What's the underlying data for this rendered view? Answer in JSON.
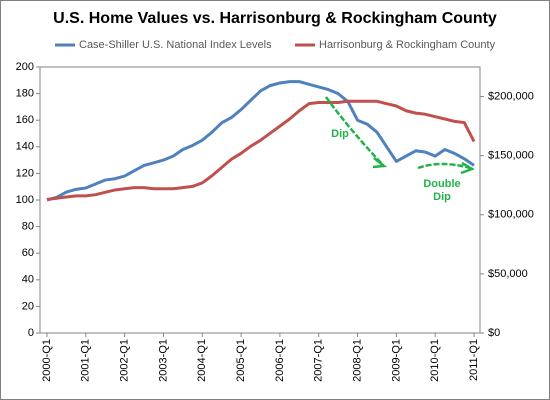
{
  "chart_data": {
    "type": "line",
    "title": "U.S. Home Values vs. Harrisonburg & Rockingham County",
    "categories": [
      "2000-Q1",
      null,
      null,
      null,
      "2001-Q1",
      null,
      null,
      null,
      "2002-Q1",
      null,
      null,
      null,
      "2003-Q1",
      null,
      null,
      null,
      "2004-Q1",
      null,
      null,
      null,
      "2005-Q1",
      null,
      null,
      null,
      "2006-Q1",
      null,
      null,
      null,
      "2007-Q1",
      null,
      null,
      null,
      "2008-Q1",
      null,
      null,
      null,
      "2009-Q1",
      null,
      null,
      null,
      "2010-Q1",
      null,
      null,
      null,
      "2011-Q1"
    ],
    "series": [
      {
        "name": "Case-Shiller U.S. National Index Levels",
        "color": "#4f81bd",
        "values": [
          100,
          102,
          106,
          108,
          109,
          112,
          115,
          116,
          118,
          122,
          126,
          128,
          130,
          133,
          138,
          141,
          145,
          151,
          158,
          162,
          168,
          175,
          182,
          186,
          188,
          189,
          189,
          187,
          185,
          183,
          180,
          174,
          160,
          157,
          151,
          140,
          129,
          133,
          137,
          136,
          133,
          138,
          135,
          131,
          126
        ]
      },
      {
        "name": "Harrisonburg & Rockingham County",
        "color": "#c0504d",
        "axis": "y2",
        "values": [
          113000,
          114000,
          115000,
          116000,
          116000,
          117000,
          119000,
          121000,
          122000,
          123000,
          123000,
          122000,
          122000,
          122000,
          123000,
          124000,
          127000,
          133000,
          140000,
          147000,
          152000,
          158000,
          163000,
          169000,
          175000,
          181000,
          188000,
          194000,
          195000,
          195000,
          195000,
          196000,
          196000,
          196000,
          196000,
          194000,
          192000,
          188000,
          186000,
          185000,
          183000,
          181000,
          179000,
          178000,
          162000
        ]
      }
    ],
    "ylim": [
      0,
      200
    ],
    "yticks": [
      0,
      20,
      40,
      60,
      80,
      100,
      120,
      140,
      160,
      180,
      200
    ],
    "y2lim": [
      0,
      225000
    ],
    "y2ticks": [
      {
        "value": 0,
        "label": "$0"
      },
      {
        "value": 50000,
        "label": "$50,000"
      },
      {
        "value": 100000,
        "label": "$100,000"
      },
      {
        "value": 150000,
        "label": "$150,000"
      },
      {
        "value": 200000,
        "label": "$200,000"
      }
    ],
    "annotations": [
      {
        "lines": [
          "Dip"
        ]
      },
      {
        "lines": [
          "Double",
          "Dip"
        ]
      }
    ],
    "legend": "top"
  }
}
